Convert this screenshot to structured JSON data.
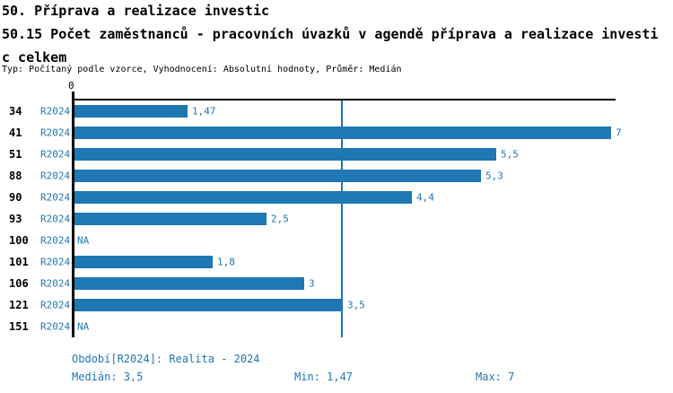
{
  "header": {
    "line1": "50. Příprava a realizace investic",
    "line2": "50.15 Počet zaměstnanců - pracovních úvazků v agendě příprava a realizace investi",
    "line3": "c celkem",
    "meta": "Typ: Počítaný podle vzorce, Vyhodnocení: Absolutní hodnoty, Průměr: Medián"
  },
  "chart_data": {
    "type": "bar",
    "orientation": "horizontal",
    "title": "50.15 Počet zaměstnanců - pracovních úvazků v agendě příprava a realizace investic celkem",
    "categories": [
      "34",
      "41",
      "51",
      "88",
      "90",
      "93",
      "100",
      "101",
      "106",
      "121",
      "151"
    ],
    "series": [
      {
        "name": "R2024",
        "values": [
          1.47,
          7,
          5.5,
          5.3,
          4.4,
          2.5,
          null,
          1.8,
          3,
          3.5,
          null
        ]
      }
    ],
    "value_labels": [
      "1,47",
      "7",
      "5,5",
      "5,3",
      "4,4",
      "2,5",
      "NA",
      "1,8",
      "3",
      "3,5",
      "NA"
    ],
    "xlim": [
      0,
      7
    ],
    "zero_tick_label": "0",
    "median_line": 3.5,
    "grid": false,
    "legend_position": "none",
    "colors": {
      "bar": "#1f77b4",
      "axis": "#000000",
      "value_text": "#1f77b4",
      "category_text": "#000000"
    }
  },
  "footer": {
    "period": "Období[R2024]: Realita - 2024",
    "median": "Medián: 3,5",
    "min": "Min: 1,47",
    "max": "Max: 7"
  }
}
